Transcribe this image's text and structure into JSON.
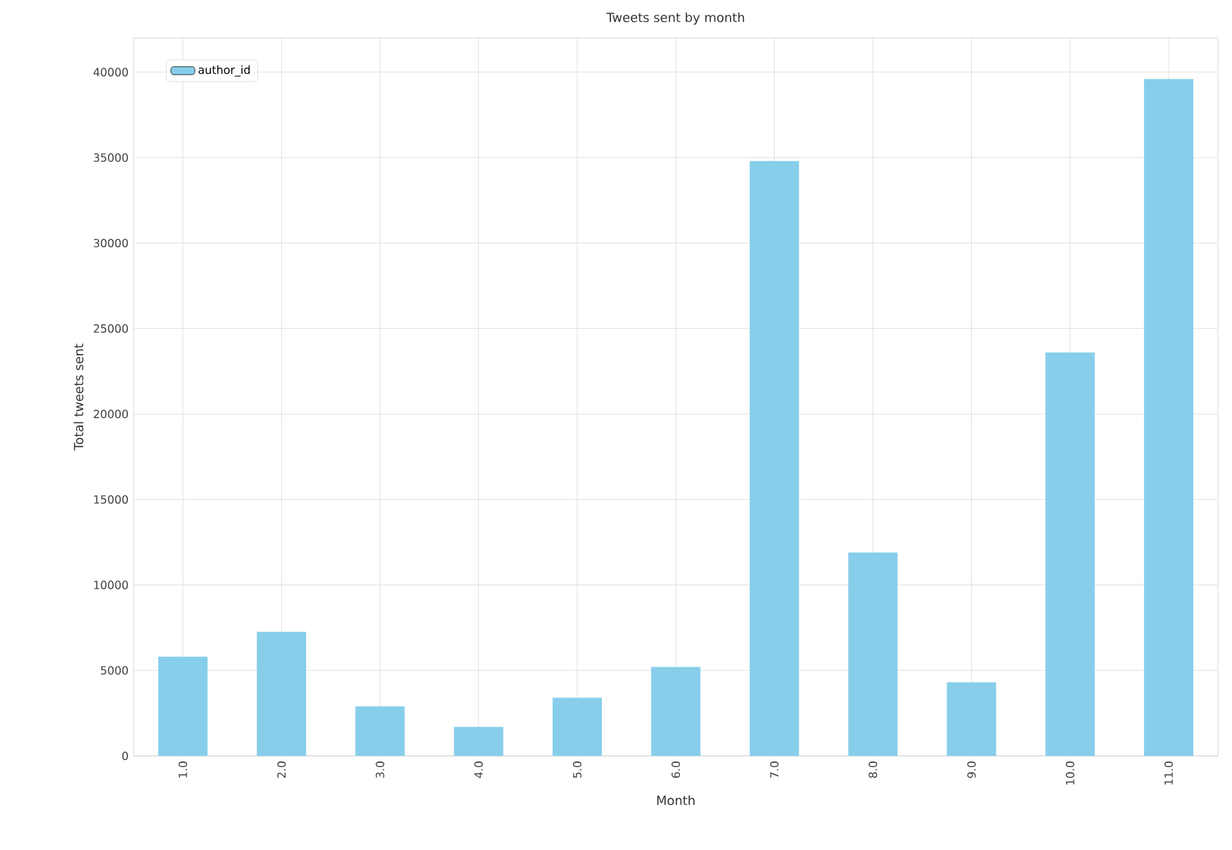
{
  "chart_data": {
    "type": "bar",
    "title": "Tweets sent by month",
    "xlabel": "Month",
    "ylabel": "Total tweets sent",
    "categories": [
      "1.0",
      "2.0",
      "3.0",
      "4.0",
      "5.0",
      "6.0",
      "7.0",
      "8.0",
      "9.0",
      "10.0",
      "11.0"
    ],
    "series": [
      {
        "name": "author_id",
        "color": "#87ceeb",
        "values": [
          5800,
          7250,
          2900,
          1700,
          3400,
          5200,
          34800,
          11900,
          4300,
          23600,
          39600
        ]
      }
    ],
    "ylim": [
      0,
      42000
    ],
    "yticks": [
      0,
      5000,
      10000,
      15000,
      20000,
      25000,
      30000,
      35000,
      40000
    ],
    "grid": true,
    "legend": "top left"
  }
}
